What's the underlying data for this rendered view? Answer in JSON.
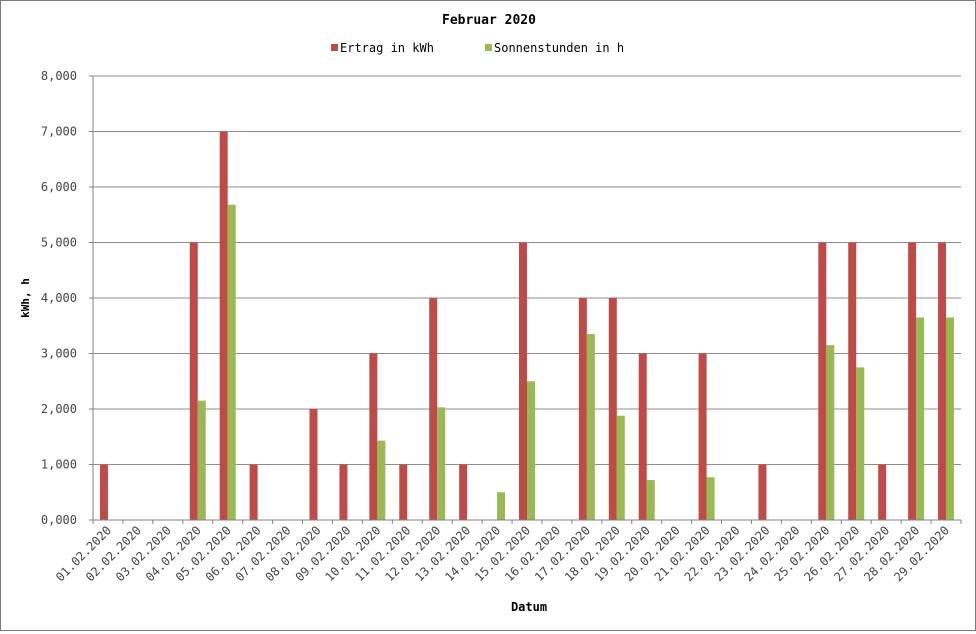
{
  "chart_data": {
    "type": "bar",
    "title": "Februar 2020",
    "xlabel": "Datum",
    "ylabel": "kWh, h",
    "ylim": [
      0,
      8
    ],
    "yticks": [
      "0,000",
      "1,000",
      "2,000",
      "3,000",
      "4,000",
      "5,000",
      "6,000",
      "7,000",
      "8,000"
    ],
    "grid": true,
    "legend_position": "top-center",
    "categories": [
      "01.02.2020",
      "02.02.2020",
      "03.02.2020",
      "04.02.2020",
      "05.02.2020",
      "06.02.2020",
      "07.02.2020",
      "08.02.2020",
      "09.02.2020",
      "10.02.2020",
      "11.02.2020",
      "12.02.2020",
      "13.02.2020",
      "14.02.2020",
      "15.02.2020",
      "16.02.2020",
      "17.02.2020",
      "18.02.2020",
      "19.02.2020",
      "20.02.2020",
      "21.02.2020",
      "22.02.2020",
      "23.02.2020",
      "24.02.2020",
      "25.02.2020",
      "26.02.2020",
      "27.02.2020",
      "28.02.2020",
      "29.02.2020"
    ],
    "series": [
      {
        "name": "Ertrag in kWh",
        "color": "#be4b48",
        "values": [
          1,
          0,
          0,
          5,
          7,
          1,
          0,
          2,
          1,
          3,
          1,
          4,
          1,
          0,
          5,
          0,
          4,
          4,
          3,
          0,
          3,
          0,
          1,
          0,
          5,
          5,
          1,
          5,
          5
        ]
      },
      {
        "name": "Sonnenstunden in h",
        "color": "#98b954",
        "values": [
          0,
          0,
          0,
          2.15,
          5.68,
          0,
          0,
          0,
          0,
          1.43,
          0,
          2.03,
          0,
          0.5,
          2.5,
          0,
          3.35,
          1.88,
          0.72,
          0,
          0.77,
          0,
          0,
          0,
          3.15,
          2.75,
          0,
          3.65,
          3.65
        ]
      }
    ]
  }
}
